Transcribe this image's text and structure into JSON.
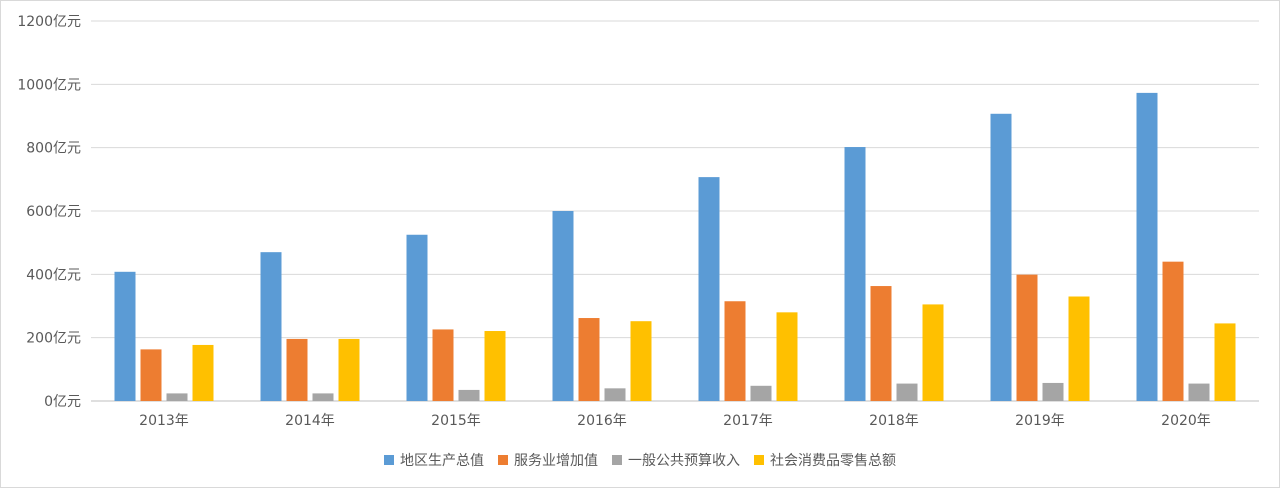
{
  "chart_data": {
    "type": "bar",
    "categories": [
      "2013年",
      "2014年",
      "2015年",
      "2016年",
      "2017年",
      "2018年",
      "2019年",
      "2020年"
    ],
    "series": [
      {
        "name": "地区生产总值",
        "color": "#5b9bd5",
        "values": [
          408,
          470,
          525,
          600,
          707,
          802,
          907,
          973
        ]
      },
      {
        "name": "服务业增加值",
        "color": "#ed7d31",
        "values": [
          163,
          196,
          226,
          262,
          315,
          363,
          399,
          440
        ]
      },
      {
        "name": "一般公共预算收入",
        "color": "#a5a5a5",
        "values": [
          24,
          24,
          35,
          40,
          48,
          55,
          57,
          55
        ]
      },
      {
        "name": "社会消费品零售总额",
        "color": "#ffc000",
        "values": [
          177,
          196,
          221,
          252,
          280,
          305,
          330,
          245
        ]
      }
    ],
    "y_ticks": [
      {
        "value": 0,
        "label": "0亿元"
      },
      {
        "value": 200,
        "label": "200亿元"
      },
      {
        "value": 400,
        "label": "400亿元"
      },
      {
        "value": 600,
        "label": "600亿元"
      },
      {
        "value": 800,
        "label": "800亿元"
      },
      {
        "value": 1000,
        "label": "1000亿元"
      },
      {
        "value": 1200,
        "label": "1200亿元"
      }
    ],
    "ylim": [
      0,
      1200
    ],
    "grid": true,
    "legend_position": "bottom"
  }
}
